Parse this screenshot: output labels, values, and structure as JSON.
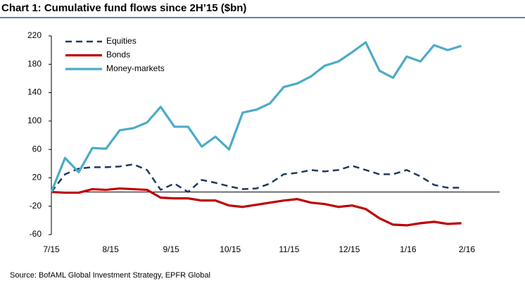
{
  "chart_data": {
    "type": "line",
    "title": "Chart 1:  Cumulative fund flows since 2H’15 ($bn)",
    "source": "Source: BofAML Global Investment Strategy, EPFR Global",
    "x": [
      0,
      1,
      2,
      3,
      4,
      5,
      6,
      7,
      8,
      9,
      10,
      11,
      12,
      13,
      14,
      15,
      16,
      17,
      18,
      19,
      20,
      21,
      22,
      23,
      24,
      25,
      26,
      27,
      28,
      29,
      30
    ],
    "xlim": [
      0,
      32.8
    ],
    "xticks": [
      {
        "value": 0,
        "label": "7/15"
      },
      {
        "value": 4.33,
        "label": "8/15"
      },
      {
        "value": 8.76,
        "label": "9/15"
      },
      {
        "value": 13.09,
        "label": "10/15"
      },
      {
        "value": 17.4,
        "label": "11/15"
      },
      {
        "value": 21.8,
        "label": "12/15"
      },
      {
        "value": 26.1,
        "label": "1/16"
      },
      {
        "value": 30.4,
        "label": "2/16"
      }
    ],
    "ylim": [
      -60,
      220
    ],
    "yticks": [
      -60,
      -20,
      20,
      60,
      100,
      140,
      180,
      220
    ],
    "grid": false,
    "legend": "upper-left",
    "series": [
      {
        "name": "Equities",
        "color": "#1f3a5f",
        "dash": true,
        "values": [
          0,
          25,
          33,
          35,
          35,
          36,
          39,
          31,
          3,
          12,
          0,
          17,
          13,
          8,
          4,
          5,
          12,
          25,
          27,
          31,
          29,
          31,
          37,
          31,
          25,
          25,
          31,
          22,
          10,
          6,
          6
        ]
      },
      {
        "name": "Bonds",
        "color": "#c00000",
        "dash": false,
        "values": [
          0,
          -1,
          -1,
          4,
          3,
          5,
          4,
          3,
          -8,
          -9,
          -9,
          -12,
          -12,
          -19,
          -21,
          -18,
          -15,
          -12,
          -10,
          -15,
          -17,
          -21,
          -19,
          -24,
          -37,
          -46,
          -47,
          -44,
          -42,
          -45,
          -44
        ]
      },
      {
        "name": "Money-markets",
        "color": "#4bacc6",
        "dash": false,
        "values": [
          0,
          48,
          28,
          62,
          61,
          87,
          90,
          98,
          120,
          92,
          92,
          64,
          78,
          60,
          112,
          116,
          125,
          148,
          153,
          163,
          178,
          184,
          197,
          211,
          171,
          161,
          191,
          184,
          207,
          200,
          206
        ]
      }
    ]
  }
}
